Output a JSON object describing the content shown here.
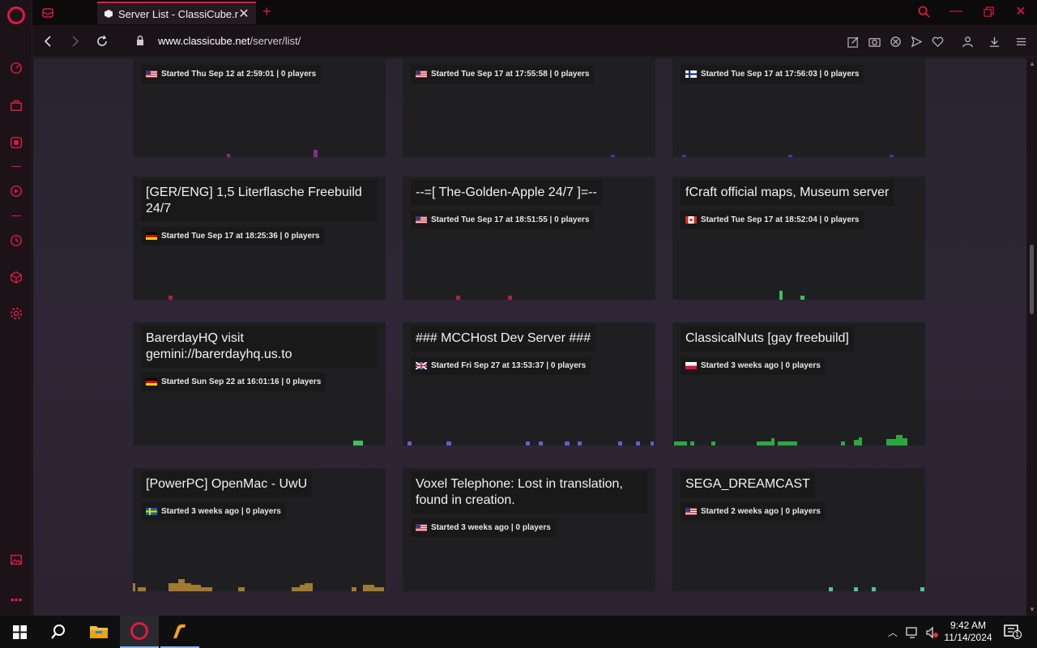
{
  "browser": {
    "tab_title": "Server List - ClassiCube.net",
    "url_host": "www.classicube.net",
    "url_path": "/server/list/"
  },
  "colors": {
    "accent": "#e01a45",
    "page_bg": "#2a2430",
    "card_bg": "#1f1f21"
  },
  "servers": [
    {
      "title": "",
      "flag": "us",
      "info": "Started Thu Sep 12 at 2:59:01 | 0 players"
    },
    {
      "title": "",
      "flag": "us",
      "info": "Started Tue Sep 17 at 17:55:58 | 0 players"
    },
    {
      "title": "",
      "flag": "fi",
      "info": "Started Tue Sep 17 at 17:56:03 | 0 players"
    },
    {
      "title": "[GER/ENG] 1,5 Literflasche Freebuild 24/7",
      "flag": "de",
      "info": "Started Tue Sep 17 at 18:25:36 | 0 players"
    },
    {
      "title": "--=[ The-Golden-Apple 24/7 ]=--",
      "flag": "us",
      "info": "Started Tue Sep 17 at 18:51:55 | 0 players"
    },
    {
      "title": "fCraft official maps, Museum server",
      "flag": "ca",
      "info": "Started Tue Sep 17 at 18:52:04 | 0 players"
    },
    {
      "title": "BarerdayHQ visit gemini://barerdayhq.us.to",
      "flag": "de",
      "info": "Started Sun Sep 22 at 16:01:16 | 0 players"
    },
    {
      "title": "### MCCHost Dev Server ###",
      "flag": "gb",
      "info": "Started Fri Sep 27 at 13:53:37 | 0 players"
    },
    {
      "title": "ClassicalNuts [gay freebuild]",
      "flag": "pl",
      "info": "Started 3 weeks ago | 0 players"
    },
    {
      "title": "[PowerPC] OpenMac - UwU",
      "flag": "se",
      "info": "Started 3 weeks ago | 0 players"
    },
    {
      "title": "Voxel Telephone: Lost in translation, found in creation.",
      "flag": "us",
      "info": "Started 3 weeks ago | 0 players"
    },
    {
      "title": "SEGA_DREAMCAST",
      "flag": "us",
      "info": "Started 2 weeks ago | 0 players"
    }
  ],
  "taskbar": {
    "time": "9:42 AM",
    "date": "11/14/2024",
    "notification_count": "1"
  }
}
